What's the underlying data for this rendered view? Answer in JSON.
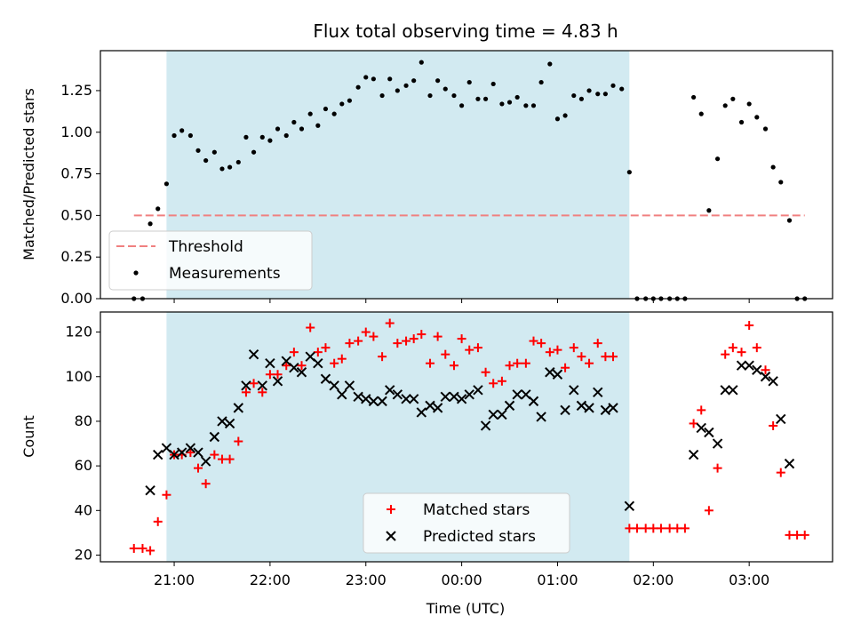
{
  "chart_data": [
    {
      "type": "scatter",
      "title": "Flux total observing time = 4.83 h",
      "ylabel": "Matched/Predicted stars",
      "xlabel": "",
      "x_unit": "hours since 20:00 UTC",
      "xlim": [
        0.23,
        7.87
      ],
      "ylim": [
        0.0,
        1.49
      ],
      "yticks": [
        "0.00",
        "0.25",
        "0.50",
        "0.75",
        "1.00",
        "1.25"
      ],
      "shaded_interval": [
        0.92,
        5.75
      ],
      "shade_color": "#add8e6",
      "threshold": {
        "name": "Threshold",
        "value": 0.5,
        "x_range": [
          0.58,
          7.58
        ],
        "color": "#f08080"
      },
      "series": [
        {
          "name": "Measurements",
          "color": "#000000",
          "points": [
            [
              0.58,
              0.0
            ],
            [
              0.67,
              0.0
            ],
            [
              0.75,
              0.45
            ],
            [
              0.83,
              0.54
            ],
            [
              0.92,
              0.69
            ],
            [
              1.0,
              0.98
            ],
            [
              1.08,
              1.01
            ],
            [
              1.17,
              0.98
            ],
            [
              1.25,
              0.89
            ],
            [
              1.33,
              0.83
            ],
            [
              1.42,
              0.88
            ],
            [
              1.5,
              0.78
            ],
            [
              1.58,
              0.79
            ],
            [
              1.67,
              0.82
            ],
            [
              1.75,
              0.97
            ],
            [
              1.83,
              0.88
            ],
            [
              1.92,
              0.97
            ],
            [
              2.0,
              0.95
            ],
            [
              2.08,
              1.02
            ],
            [
              2.17,
              0.98
            ],
            [
              2.25,
              1.06
            ],
            [
              2.33,
              1.02
            ],
            [
              2.42,
              1.11
            ],
            [
              2.5,
              1.04
            ],
            [
              2.58,
              1.14
            ],
            [
              2.67,
              1.11
            ],
            [
              2.75,
              1.17
            ],
            [
              2.83,
              1.19
            ],
            [
              2.92,
              1.27
            ],
            [
              3.0,
              1.33
            ],
            [
              3.08,
              1.32
            ],
            [
              3.17,
              1.22
            ],
            [
              3.25,
              1.32
            ],
            [
              3.33,
              1.25
            ],
            [
              3.42,
              1.28
            ],
            [
              3.5,
              1.31
            ],
            [
              3.58,
              1.42
            ],
            [
              3.67,
              1.22
            ],
            [
              3.75,
              1.31
            ],
            [
              3.83,
              1.26
            ],
            [
              3.92,
              1.22
            ],
            [
              4.0,
              1.16
            ],
            [
              4.08,
              1.3
            ],
            [
              4.17,
              1.2
            ],
            [
              4.25,
              1.2
            ],
            [
              4.33,
              1.29
            ],
            [
              4.42,
              1.17
            ],
            [
              4.5,
              1.18
            ],
            [
              4.58,
              1.21
            ],
            [
              4.67,
              1.16
            ],
            [
              4.75,
              1.16
            ],
            [
              4.83,
              1.3
            ],
            [
              4.92,
              1.41
            ],
            [
              5.0,
              1.08
            ],
            [
              5.08,
              1.1
            ],
            [
              5.17,
              1.22
            ],
            [
              5.25,
              1.2
            ],
            [
              5.33,
              1.25
            ],
            [
              5.42,
              1.23
            ],
            [
              5.5,
              1.23
            ],
            [
              5.58,
              1.28
            ],
            [
              5.67,
              1.26
            ],
            [
              5.75,
              0.76
            ],
            [
              5.83,
              0.0
            ],
            [
              5.92,
              0.0
            ],
            [
              6.0,
              0.0
            ],
            [
              6.08,
              0.0
            ],
            [
              6.17,
              0.0
            ],
            [
              6.25,
              0.0
            ],
            [
              6.33,
              0.0
            ],
            [
              6.42,
              1.21
            ],
            [
              6.5,
              1.11
            ],
            [
              6.58,
              0.53
            ],
            [
              6.67,
              0.84
            ],
            [
              6.75,
              1.16
            ],
            [
              6.83,
              1.2
            ],
            [
              6.92,
              1.06
            ],
            [
              7.0,
              1.17
            ],
            [
              7.08,
              1.09
            ],
            [
              7.17,
              1.02
            ],
            [
              7.25,
              0.79
            ],
            [
              7.33,
              0.7
            ],
            [
              7.42,
              0.47
            ],
            [
              7.5,
              0.0
            ],
            [
              7.58,
              0.0
            ]
          ]
        }
      ],
      "legend": {
        "placement": "lower-left",
        "entries": [
          "Threshold",
          "Measurements"
        ]
      }
    },
    {
      "type": "scatter",
      "title": "",
      "ylabel": "Count",
      "xlabel": "Time (UTC)",
      "x_unit": "hours since 20:00 UTC",
      "xlim": [
        0.23,
        7.87
      ],
      "ylim": [
        17,
        129
      ],
      "yticks": [
        "20",
        "40",
        "60",
        "80",
        "100",
        "120"
      ],
      "xticks": [
        "21:00",
        "22:00",
        "23:00",
        "00:00",
        "01:00",
        "02:00",
        "03:00"
      ],
      "shaded_interval": [
        0.92,
        5.75
      ],
      "shade_color": "#add8e6",
      "series": [
        {
          "name": "Matched stars",
          "marker": "plus",
          "color": "#ff0000",
          "points": [
            [
              0.58,
              23
            ],
            [
              0.67,
              23
            ],
            [
              0.75,
              22
            ],
            [
              0.83,
              35
            ],
            [
              0.92,
              47
            ],
            [
              1.0,
              65
            ],
            [
              1.08,
              65
            ],
            [
              1.17,
              66
            ],
            [
              1.25,
              59
            ],
            [
              1.33,
              52
            ],
            [
              1.42,
              65
            ],
            [
              1.5,
              63
            ],
            [
              1.58,
              63
            ],
            [
              1.67,
              71
            ],
            [
              1.75,
              93
            ],
            [
              1.83,
              97
            ],
            [
              1.92,
              93
            ],
            [
              2.0,
              101
            ],
            [
              2.08,
              101
            ],
            [
              2.17,
              105
            ],
            [
              2.25,
              111
            ],
            [
              2.33,
              105
            ],
            [
              2.42,
              122
            ],
            [
              2.5,
              111
            ],
            [
              2.58,
              113
            ],
            [
              2.67,
              106
            ],
            [
              2.75,
              108
            ],
            [
              2.83,
              115
            ],
            [
              2.92,
              116
            ],
            [
              3.0,
              120
            ],
            [
              3.08,
              118
            ],
            [
              3.17,
              109
            ],
            [
              3.25,
              124
            ],
            [
              3.33,
              115
            ],
            [
              3.42,
              116
            ],
            [
              3.5,
              117
            ],
            [
              3.58,
              119
            ],
            [
              3.67,
              106
            ],
            [
              3.75,
              118
            ],
            [
              3.83,
              110
            ],
            [
              3.92,
              105
            ],
            [
              4.0,
              117
            ],
            [
              4.08,
              112
            ],
            [
              4.17,
              113
            ],
            [
              4.25,
              102
            ],
            [
              4.33,
              97
            ],
            [
              4.42,
              98
            ],
            [
              4.5,
              105
            ],
            [
              4.58,
              106
            ],
            [
              4.67,
              106
            ],
            [
              4.75,
              116
            ],
            [
              4.83,
              115
            ],
            [
              4.92,
              111
            ],
            [
              5.0,
              112
            ],
            [
              5.08,
              104
            ],
            [
              5.17,
              113
            ],
            [
              5.25,
              109
            ],
            [
              5.33,
              106
            ],
            [
              5.42,
              115
            ],
            [
              5.5,
              109
            ],
            [
              5.58,
              109
            ],
            [
              5.75,
              32
            ],
            [
              5.83,
              32
            ],
            [
              5.92,
              32
            ],
            [
              6.0,
              32
            ],
            [
              6.08,
              32
            ],
            [
              6.17,
              32
            ],
            [
              6.25,
              32
            ],
            [
              6.33,
              32
            ],
            [
              6.42,
              79
            ],
            [
              6.5,
              85
            ],
            [
              6.58,
              40
            ],
            [
              6.67,
              59
            ],
            [
              6.75,
              110
            ],
            [
              6.83,
              113
            ],
            [
              6.92,
              111
            ],
            [
              7.0,
              123
            ],
            [
              7.08,
              113
            ],
            [
              7.17,
              103
            ],
            [
              7.25,
              78
            ],
            [
              7.33,
              57
            ],
            [
              7.42,
              29
            ],
            [
              7.5,
              29
            ],
            [
              7.58,
              29
            ]
          ]
        },
        {
          "name": "Predicted stars",
          "marker": "x",
          "color": "#000000",
          "points": [
            [
              0.75,
              49
            ],
            [
              0.83,
              65
            ],
            [
              0.92,
              68
            ],
            [
              1.0,
              65
            ],
            [
              1.08,
              66
            ],
            [
              1.17,
              68
            ],
            [
              1.25,
              66
            ],
            [
              1.33,
              62
            ],
            [
              1.42,
              73
            ],
            [
              1.5,
              80
            ],
            [
              1.58,
              79
            ],
            [
              1.67,
              86
            ],
            [
              1.75,
              96
            ],
            [
              1.83,
              110
            ],
            [
              1.92,
              96
            ],
            [
              2.0,
              106
            ],
            [
              2.08,
              98
            ],
            [
              2.17,
              107
            ],
            [
              2.25,
              104
            ],
            [
              2.33,
              102
            ],
            [
              2.42,
              109
            ],
            [
              2.5,
              106
            ],
            [
              2.58,
              99
            ],
            [
              2.67,
              96
            ],
            [
              2.75,
              92
            ],
            [
              2.83,
              96
            ],
            [
              2.92,
              91
            ],
            [
              3.0,
              90
            ],
            [
              3.08,
              89
            ],
            [
              3.17,
              89
            ],
            [
              3.25,
              94
            ],
            [
              3.33,
              92
            ],
            [
              3.42,
              90
            ],
            [
              3.5,
              90
            ],
            [
              3.58,
              84
            ],
            [
              3.67,
              87
            ],
            [
              3.75,
              86
            ],
            [
              3.83,
              91
            ],
            [
              3.92,
              91
            ],
            [
              4.0,
              90
            ],
            [
              4.08,
              92
            ],
            [
              4.17,
              94
            ],
            [
              4.25,
              78
            ],
            [
              4.33,
              83
            ],
            [
              4.42,
              83
            ],
            [
              4.5,
              87
            ],
            [
              4.58,
              92
            ],
            [
              4.67,
              92
            ],
            [
              4.75,
              89
            ],
            [
              4.83,
              82
            ],
            [
              4.92,
              102
            ],
            [
              5.0,
              101
            ],
            [
              5.08,
              85
            ],
            [
              5.17,
              94
            ],
            [
              5.25,
              87
            ],
            [
              5.33,
              86
            ],
            [
              5.42,
              93
            ],
            [
              5.5,
              85
            ],
            [
              5.58,
              86
            ],
            [
              5.75,
              42
            ],
            [
              6.42,
              65
            ],
            [
              6.5,
              77
            ],
            [
              6.58,
              75
            ],
            [
              6.67,
              70
            ],
            [
              6.75,
              94
            ],
            [
              6.83,
              94
            ],
            [
              6.92,
              105
            ],
            [
              7.0,
              105
            ],
            [
              7.08,
              103
            ],
            [
              7.17,
              100
            ],
            [
              7.25,
              98
            ],
            [
              7.33,
              81
            ],
            [
              7.42,
              61
            ]
          ]
        }
      ],
      "legend": {
        "placement": "lower-center",
        "entries": [
          "Matched stars",
          "Predicted stars"
        ]
      }
    }
  ]
}
